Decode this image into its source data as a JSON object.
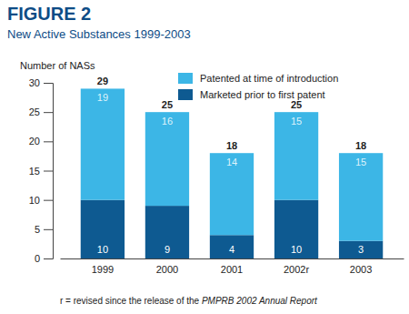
{
  "chart_data": {
    "type": "bar",
    "title": "FIGURE 2",
    "subtitle": "New Active Substances 1999-2003",
    "y_label": "Number of NASs",
    "categories": [
      "1999",
      "2000",
      "2001",
      "2002r",
      "2003"
    ],
    "series": [
      {
        "name": "Marketed prior to first patent",
        "color": "#0e5a91",
        "values": [
          10,
          9,
          4,
          10,
          3
        ]
      },
      {
        "name": "Patented at time of introduction",
        "color": "#3cb6e6",
        "values": [
          19,
          16,
          14,
          15,
          15
        ]
      }
    ],
    "totals": [
      29,
      25,
      18,
      25,
      18
    ],
    "stacked": true,
    "data_labels": true,
    "grid": false,
    "legend": "top",
    "ylim": [
      0,
      30
    ],
    "yticks": [
      0,
      5,
      10,
      15,
      20,
      25,
      30
    ],
    "note": [
      "r = revised since the release of the ",
      "PMPRB 2002 Annual Report"
    ]
  }
}
